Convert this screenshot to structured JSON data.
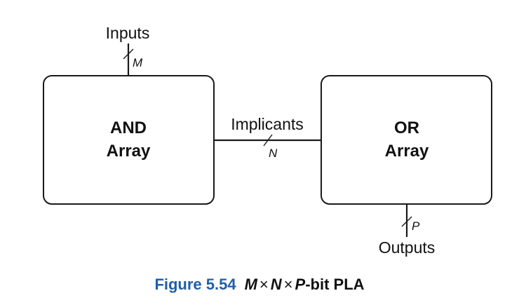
{
  "blocks": {
    "and_array": {
      "line1": "AND",
      "line2": "Array"
    },
    "or_array": {
      "line1": "OR",
      "line2": "Array"
    }
  },
  "signals": {
    "inputs": {
      "label": "Inputs",
      "width": "M"
    },
    "implicants": {
      "label": "Implicants",
      "width": "N"
    },
    "outputs": {
      "label": "Outputs",
      "width": "P"
    }
  },
  "caption": {
    "number": "Figure 5.54",
    "m": "M",
    "n": "N",
    "p": "P",
    "times": "×",
    "suffix": "-bit PLA"
  },
  "colors": {
    "caption_number": "#1f5fa8",
    "stroke": "#1a1a1a"
  }
}
